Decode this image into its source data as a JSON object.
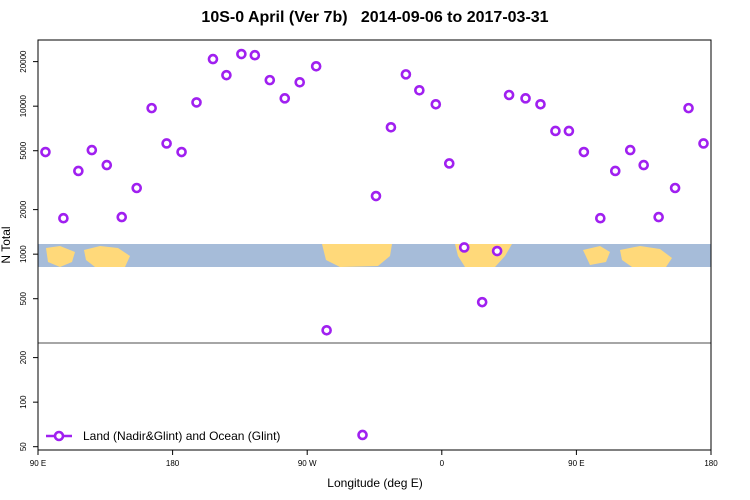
{
  "chart_data": {
    "type": "scatter",
    "title": "10S-0 April (Ver 7b)   2014-09-06 to 2017-03-31",
    "x_label": "Longitude (deg E)",
    "y_label": "N Total",
    "yscale": "log",
    "legend": "bottom-left",
    "xlim": [
      90,
      540
    ],
    "xticks": [
      {
        "value": 90,
        "label": "90 E"
      },
      {
        "value": 180,
        "label": "180"
      },
      {
        "value": 270,
        "label": "90 W"
      },
      {
        "value": 360,
        "label": "0"
      },
      {
        "value": 450,
        "label": "90 E"
      },
      {
        "value": 540,
        "label": "180"
      }
    ],
    "ylim": [
      47.5,
      28000
    ],
    "yticks": [
      50,
      100,
      200,
      500,
      1000,
      2000,
      5000,
      10000,
      20000
    ],
    "series": [
      {
        "name": "Land (Nadir&Glint) and Ocean (Glint)",
        "color": "#a020f0",
        "x": [
          95,
          107,
          117,
          126,
          136,
          146,
          156,
          166,
          176,
          186,
          196,
          207,
          216,
          226,
          235,
          245,
          255,
          265,
          276,
          283,
          307,
          316,
          326,
          336,
          345,
          356,
          365,
          375,
          387,
          397,
          405,
          416,
          426,
          436,
          445,
          455,
          466,
          476,
          486,
          495,
          505,
          516,
          525,
          535
        ],
        "values": [
          4900,
          1750,
          3650,
          5050,
          4000,
          1780,
          2800,
          9700,
          5600,
          4900,
          10600,
          20800,
          16200,
          22500,
          22100,
          15000,
          11300,
          14500,
          18600,
          306,
          60,
          2470,
          7200,
          16400,
          12800,
          10300,
          4100,
          1110,
          474,
          1050,
          11900,
          11300,
          10300,
          6800,
          6800,
          4900,
          1750,
          3650,
          5050,
          4000,
          1780,
          2800,
          9700,
          5600
        ]
      }
    ]
  }
}
